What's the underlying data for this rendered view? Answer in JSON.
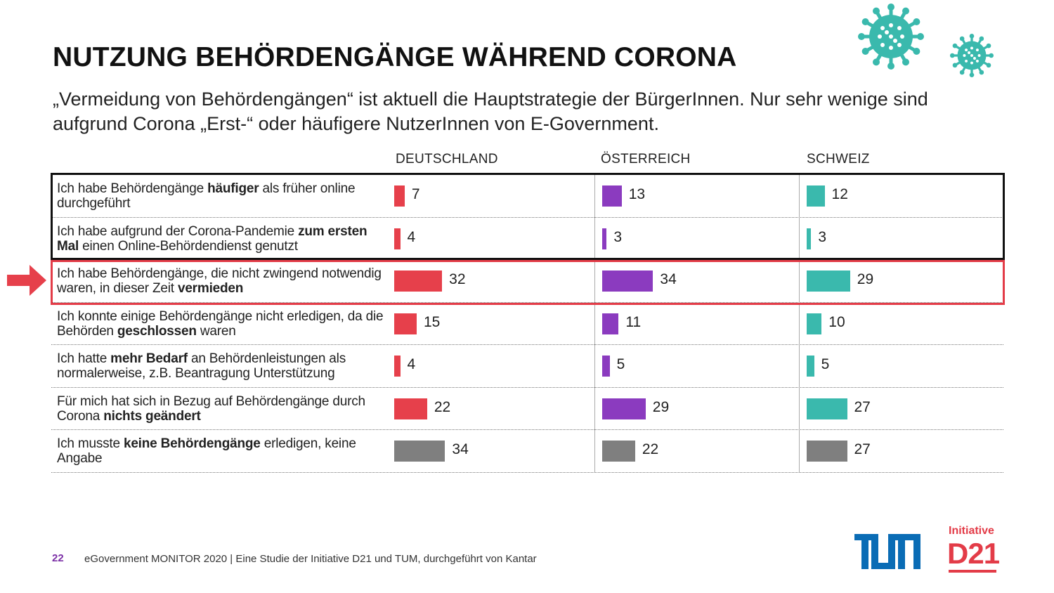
{
  "title": "NUTZUNG BEHÖRDENGÄNGE WÄHREND CORONA",
  "subtitle": "„Vermeidung von Behördengängen“ ist aktuell die Hauptstrategie der BürgerInnen. Nur sehr wenige sind aufgrund Corona „Erst-“ oder häufigere NutzerInnen von E-Government.",
  "colors": {
    "deutschland": "#e6404b",
    "oesterreich": "#8b3bbf",
    "schweiz": "#3ab9ad",
    "none": "#7f7f7f",
    "highlight": "#e33c48"
  },
  "chart_data": {
    "type": "bar",
    "columns": [
      "DEUTSCHLAND",
      "ÖSTERREICH",
      "SCHWEIZ"
    ],
    "rows": [
      {
        "parts": [
          [
            "Ich habe Behördengänge ",
            false
          ],
          [
            "häufiger",
            true
          ],
          [
            " als früher online durchgeführt",
            false
          ]
        ],
        "values": [
          7,
          13,
          12
        ]
      },
      {
        "parts": [
          [
            "Ich habe aufgrund der Corona-Pandemie ",
            false
          ],
          [
            "zum ersten Mal",
            true
          ],
          [
            " einen Online-Behördendienst genutzt",
            false
          ]
        ],
        "values": [
          4,
          3,
          3
        ]
      },
      {
        "parts": [
          [
            "Ich habe Behördengänge, die nicht zwingend notwendig waren, in dieser Zeit ",
            false
          ],
          [
            "vermieden",
            true
          ]
        ],
        "values": [
          32,
          34,
          29
        ]
      },
      {
        "parts": [
          [
            "Ich konnte einige Behördengänge nicht erledigen, da die Behörden ",
            false
          ],
          [
            "geschlossen",
            true
          ],
          [
            " waren",
            false
          ]
        ],
        "values": [
          15,
          11,
          10
        ]
      },
      {
        "parts": [
          [
            "Ich hatte ",
            false
          ],
          [
            "mehr Bedarf",
            true
          ],
          [
            " an Behördenleistungen als normalerweise, z.B.  Beantragung Unterstützung",
            false
          ]
        ],
        "values": [
          4,
          5,
          5
        ]
      },
      {
        "parts": [
          [
            "Für mich hat sich in Bezug auf Behördengänge durch Corona ",
            false
          ],
          [
            "nichts geändert",
            true
          ]
        ],
        "values": [
          22,
          29,
          27
        ]
      },
      {
        "parts": [
          [
            "Ich musste ",
            false
          ],
          [
            "keine Behördengänge",
            true
          ],
          [
            " erledigen, keine Angabe",
            false
          ]
        ],
        "values": [
          34,
          22,
          27
        ],
        "neutral": true
      }
    ]
  },
  "footer": {
    "page_number": "22",
    "source": "eGovernment MONITOR 2020 | Eine Studie der Initiative D21 und TUM, durchgeführt von Kantar"
  },
  "logos": {
    "d21_initiative": "Initiative",
    "d21": "D21",
    "tum": "TUM"
  },
  "icons": [
    "virus-icon",
    "virus-icon",
    "arrow-right-icon"
  ]
}
